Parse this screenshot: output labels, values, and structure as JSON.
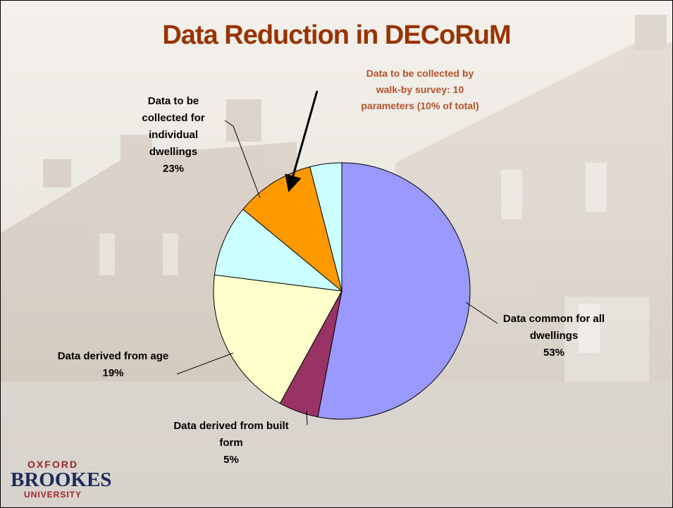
{
  "chart_data": {
    "type": "pie",
    "title": "Data Reduction in DECoRuM",
    "categories": [
      "Data common for all dwellings",
      "Data derived from built form",
      "Data derived from age",
      null,
      null,
      null
    ],
    "values": [
      53,
      5,
      19,
      9,
      10,
      4
    ],
    "value_labels": [
      "53%",
      "5%",
      "19%",
      null,
      null,
      null
    ],
    "colors": [
      "#9999ff",
      "#993366",
      "#ffffcc",
      "#ccffff",
      "#ff9900",
      "#ccffff"
    ],
    "annotations": [
      {
        "text": "Data to be collected for individual dwellings",
        "label": "23%"
      },
      {
        "text": "Data to be collected by walk-by survey: 10 parameters (10% of total)"
      }
    ]
  },
  "logo": {
    "line1": "OXFORD",
    "line2": "BROOKES",
    "line3": "UNIVERSITY"
  }
}
